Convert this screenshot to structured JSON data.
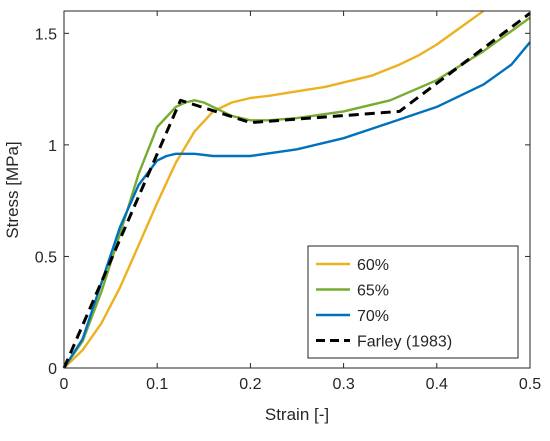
{
  "chart_data": {
    "type": "line",
    "xlabel": "Strain [-]",
    "ylabel": "Stress [MPa]",
    "xlim": [
      0,
      0.5
    ],
    "ylim": [
      0,
      1.6
    ],
    "xticks": [
      0,
      0.1,
      0.2,
      0.3,
      0.4,
      0.5
    ],
    "xtick_labels": [
      "0",
      "0.1",
      "0.2",
      "0.3",
      "0.4",
      "0.5"
    ],
    "yticks": [
      0,
      0.5,
      1,
      1.5
    ],
    "ytick_labels": [
      "0",
      "0.5",
      "1",
      "1.5"
    ],
    "grid": false,
    "legend_position": "bottom-right",
    "series": [
      {
        "name": "60%",
        "color": "#EDB120",
        "dash": "solid",
        "x": [
          0,
          0.02,
          0.04,
          0.06,
          0.08,
          0.1,
          0.12,
          0.14,
          0.16,
          0.18,
          0.2,
          0.22,
          0.25,
          0.28,
          0.3,
          0.33,
          0.36,
          0.38,
          0.4,
          0.42,
          0.44,
          0.45
        ],
        "y": [
          0,
          0.08,
          0.2,
          0.36,
          0.55,
          0.74,
          0.92,
          1.06,
          1.15,
          1.19,
          1.21,
          1.22,
          1.24,
          1.26,
          1.28,
          1.31,
          1.36,
          1.4,
          1.45,
          1.51,
          1.57,
          1.6
        ]
      },
      {
        "name": "65%",
        "color": "#77AC30",
        "dash": "solid",
        "x": [
          0,
          0.02,
          0.04,
          0.06,
          0.08,
          0.1,
          0.12,
          0.13,
          0.14,
          0.15,
          0.16,
          0.18,
          0.2,
          0.22,
          0.25,
          0.3,
          0.35,
          0.4,
          0.45,
          0.5
        ],
        "y": [
          0,
          0.12,
          0.34,
          0.6,
          0.87,
          1.08,
          1.17,
          1.19,
          1.2,
          1.19,
          1.17,
          1.13,
          1.11,
          1.11,
          1.12,
          1.15,
          1.2,
          1.29,
          1.42,
          1.57
        ]
      },
      {
        "name": "70%",
        "color": "#0072BD",
        "dash": "solid",
        "x": [
          0,
          0.02,
          0.04,
          0.06,
          0.08,
          0.1,
          0.11,
          0.12,
          0.14,
          0.16,
          0.2,
          0.25,
          0.3,
          0.35,
          0.4,
          0.45,
          0.48,
          0.5
        ],
        "y": [
          0,
          0.13,
          0.38,
          0.63,
          0.82,
          0.93,
          0.95,
          0.96,
          0.96,
          0.95,
          0.95,
          0.98,
          1.03,
          1.1,
          1.17,
          1.27,
          1.36,
          1.46
        ]
      },
      {
        "name": "Farley (1983)",
        "color": "#000000",
        "dash": "dashed",
        "x": [
          0,
          0.125,
          0.2,
          0.36,
          0.5
        ],
        "y": [
          0,
          1.2,
          1.1,
          1.15,
          1.59
        ]
      }
    ]
  }
}
